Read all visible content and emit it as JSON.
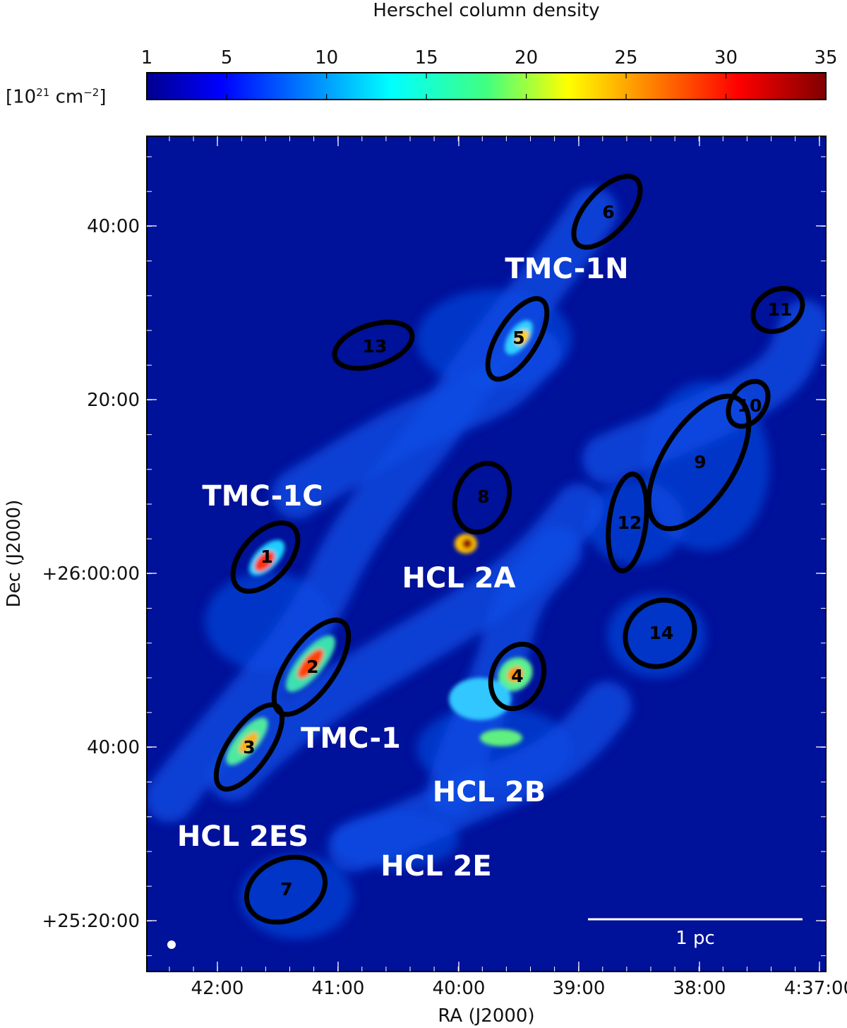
{
  "chart_data": {
    "type": "heatmap",
    "title": "Herschel column density",
    "colorbar": {
      "unit_label": "[10",
      "unit_exp": "21",
      "unit_tail": " cm",
      "unit_tail_exp": "−2",
      "unit_close": "]",
      "range": [
        1,
        35
      ],
      "ticks": [
        1,
        5,
        10,
        15,
        20,
        25,
        30,
        35
      ],
      "tick_labels": [
        "1",
        "5",
        "10",
        "15",
        "20",
        "25",
        "30",
        "35"
      ],
      "colormap": "jet"
    },
    "xlabel": "RA (J2000)",
    "ylabel": "Dec (J2000)",
    "x_ticks": [
      "42:00",
      "41:00",
      "40:00",
      "39:00",
      "38:00",
      "4:37:00"
    ],
    "y_ticks": [
      "40:00",
      "20:00",
      "+26:00:00",
      "40:00",
      "+25:20:00"
    ],
    "regions": [
      {
        "label": "TMC-1N"
      },
      {
        "label": "TMC-1C"
      },
      {
        "label": "HCL 2A"
      },
      {
        "label": "TMC-1"
      },
      {
        "label": "HCL 2B"
      },
      {
        "label": "HCL 2ES"
      },
      {
        "label": "HCL 2E"
      }
    ],
    "cores": [
      "1",
      "2",
      "3",
      "4",
      "5",
      "6",
      "7",
      "8",
      "9",
      "10",
      "11",
      "12",
      "13",
      "14"
    ],
    "scalebar_label": "1 pc",
    "colors": {
      "background": "#00119a",
      "filament": "#0a4fe6",
      "ellipse": "#000000",
      "annotation": "#ffffff"
    }
  }
}
